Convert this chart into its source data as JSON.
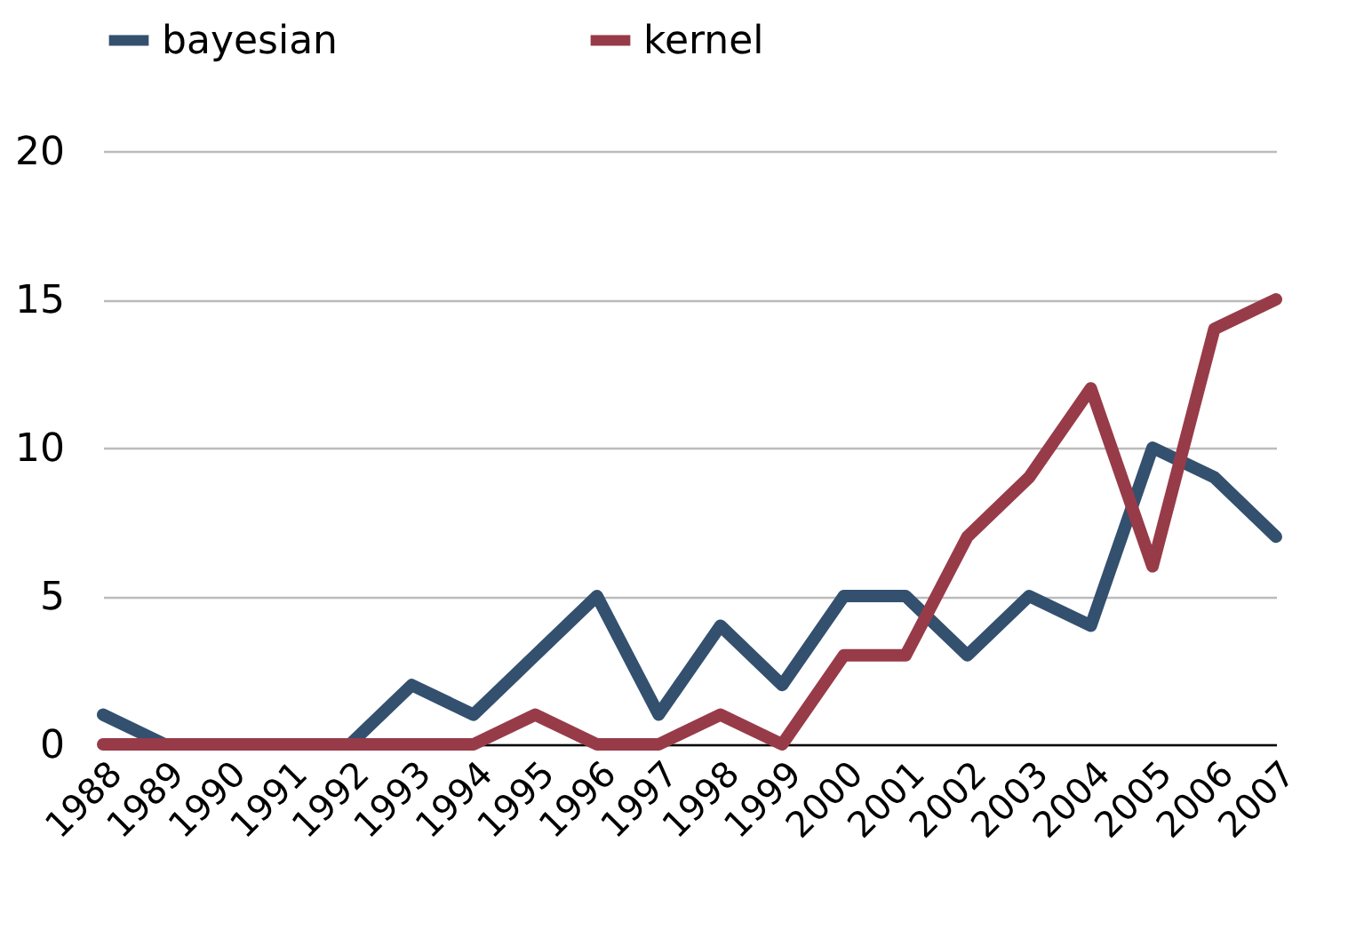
{
  "chart_data": {
    "type": "line",
    "categories": [
      "1988",
      "1989",
      "1990",
      "1991",
      "1992",
      "1993",
      "1994",
      "1995",
      "1996",
      "1997",
      "1998",
      "1999",
      "2000",
      "2001",
      "2002",
      "2003",
      "2004",
      "2005",
      "2006",
      "2007"
    ],
    "series": [
      {
        "name": "bayesian",
        "color": "#34506f",
        "values": [
          1,
          0,
          0,
          0,
          0,
          2,
          1,
          3,
          5,
          1,
          4,
          2,
          5,
          5,
          3,
          5,
          4,
          10,
          9,
          7
        ]
      },
      {
        "name": "kernel",
        "color": "#983b48",
        "values": [
          0,
          0,
          0,
          0,
          0,
          0,
          0,
          1,
          0,
          0,
          1,
          0,
          3,
          3,
          7,
          9,
          12,
          6,
          14,
          15
        ]
      }
    ],
    "ylim": [
      0,
      20
    ],
    "yticks": [
      0,
      5,
      10,
      15,
      20
    ],
    "grid": "y",
    "legend": "top",
    "marker": "none",
    "line_style": "solid"
  }
}
